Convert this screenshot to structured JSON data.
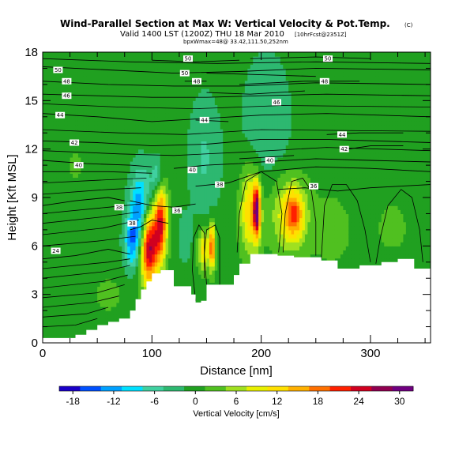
{
  "title": "Wind-Parallel Section at Max W: Vertical Velocity & Pot.Temp.",
  "title_mark": "(C)",
  "subtitle": "Valid 1400 LST (1200Z) THU 18 Mar 2010",
  "subtitle_note": "[10hrFcst@2351Z]",
  "subtitle_line2": "bpxWmax=48@ 33.42,111.50,252nm",
  "chart_data": {
    "type": "heatmap",
    "xlabel": "Distance [nm]",
    "ylabel": "Height [Kft MSL]",
    "xlim": [
      0,
      355
    ],
    "ylim": [
      0,
      18
    ],
    "x_ticks": [
      0,
      100,
      200,
      300
    ],
    "y_ticks": [
      0,
      3,
      6,
      9,
      12,
      15,
      18
    ],
    "colorbar": {
      "title": "Vertical Velocity [cm/s]",
      "ticks": [
        -18,
        -12,
        -6,
        0,
        6,
        12,
        18,
        24,
        30
      ],
      "range": [
        -20,
        32
      ],
      "colors": [
        "#1a00c8",
        "#0050ff",
        "#00a0ff",
        "#00e0ff",
        "#40d0a0",
        "#2db870",
        "#20a020",
        "#50c020",
        "#a0e020",
        "#e8f000",
        "#ffe000",
        "#ffb000",
        "#ff7000",
        "#ff2000",
        "#d00020",
        "#900050",
        "#700080"
      ]
    },
    "terrain_profile": [
      [
        0,
        0.3
      ],
      [
        20,
        0.3
      ],
      [
        30,
        0.5
      ],
      [
        40,
        0.8
      ],
      [
        50,
        1.1
      ],
      [
        60,
        1.3
      ],
      [
        70,
        1.5
      ],
      [
        80,
        2.0
      ],
      [
        85,
        2.7
      ],
      [
        90,
        3.3
      ],
      [
        95,
        3.8
      ],
      [
        100,
        4.3
      ],
      [
        108,
        4.5
      ],
      [
        115,
        4.5
      ],
      [
        120,
        3.5
      ],
      [
        128,
        3.5
      ],
      [
        136,
        3.0
      ],
      [
        140,
        2.5
      ],
      [
        145,
        2.6
      ],
      [
        150,
        3.6
      ],
      [
        170,
        3.6
      ],
      [
        175,
        4.2
      ],
      [
        180,
        4.9
      ],
      [
        190,
        5.5
      ],
      [
        205,
        5.5
      ],
      [
        215,
        5.4
      ],
      [
        230,
        5.3
      ],
      [
        255,
        5.1
      ],
      [
        270,
        4.6
      ],
      [
        290,
        4.8
      ],
      [
        310,
        5.0
      ],
      [
        325,
        5.2
      ],
      [
        340,
        4.6
      ],
      [
        355,
        4.6
      ]
    ],
    "velocity_cells": [
      {
        "x": 97,
        "z": 6.0,
        "w": 30,
        "rx": 8,
        "rz": 2.3
      },
      {
        "x": 108,
        "z": 7.5,
        "w": 22,
        "rx": 6,
        "rz": 2.4
      },
      {
        "x": 90,
        "z": 8.0,
        "w": -16,
        "rx": 10,
        "rz": 2.6
      },
      {
        "x": 81,
        "z": 6.2,
        "w": -10,
        "rx": 7,
        "rz": 1.6
      },
      {
        "x": 105,
        "z": 10.2,
        "w": -8,
        "rx": 6,
        "rz": 1.4
      },
      {
        "x": 130,
        "z": 6.4,
        "w": -4,
        "rx": 6,
        "rz": 1.6
      },
      {
        "x": 147,
        "z": 5.8,
        "w": 12,
        "rx": 5,
        "rz": 1.3
      },
      {
        "x": 155,
        "z": 6.0,
        "w": 20,
        "rx": 3,
        "rz": 1.4
      },
      {
        "x": 190,
        "z": 8.2,
        "w": 14,
        "rx": 9,
        "rz": 2.6
      },
      {
        "x": 196,
        "z": 8.2,
        "w": 26,
        "rx": 3,
        "rz": 1.6
      },
      {
        "x": 225,
        "z": 8.0,
        "w": 10,
        "rx": 18,
        "rz": 2.4
      },
      {
        "x": 230,
        "z": 8.0,
        "w": 13,
        "rx": 8,
        "rz": 1.4
      },
      {
        "x": 148,
        "z": 11.5,
        "w": -5,
        "rx": 15,
        "rz": 4.0
      },
      {
        "x": 205,
        "z": 13.5,
        "w": -4,
        "rx": 25,
        "rz": 5.0
      },
      {
        "x": 265,
        "z": 7.0,
        "w": 3,
        "rx": 18,
        "rz": 2.2
      },
      {
        "x": 320,
        "z": 7.2,
        "w": 2,
        "rx": 20,
        "rz": 2.2
      },
      {
        "x": 30,
        "z": 11.0,
        "w": 1.5,
        "rx": 20,
        "rz": 3.0
      },
      {
        "x": 60,
        "z": 3.0,
        "w": 2,
        "rx": 18,
        "rz": 1.5
      }
    ],
    "theta_contours": [
      {
        "label": "24",
        "points": [
          [
            0,
            5.2
          ],
          [
            30,
            5.4
          ],
          [
            60,
            5.8
          ],
          [
            80,
            5.5
          ]
        ],
        "label_at": [
          12,
          5.7
        ]
      },
      {
        "label": "36",
        "points": [
          [
            80,
            8.8
          ],
          [
            100,
            8.5
          ],
          [
            120,
            8.4
          ],
          [
            140,
            8.6
          ]
        ],
        "label_at": [
          123,
          8.2
        ]
      },
      {
        "label": "36",
        "points": [
          [
            215,
            9.5
          ],
          [
            240,
            9.6
          ],
          [
            270,
            9.4
          ],
          [
            300,
            9.6
          ],
          [
            355,
            9.8
          ]
        ],
        "label_at": [
          248,
          9.7
        ]
      },
      {
        "label": "38",
        "points": [
          [
            0,
            8.5
          ],
          [
            30,
            8.8
          ],
          [
            60,
            9.0
          ],
          [
            75,
            8.8
          ]
        ],
        "label_at": [
          70,
          8.4
        ]
      },
      {
        "label": "38",
        "points": [
          [
            140,
            9.7
          ],
          [
            170,
            9.9
          ],
          [
            200,
            10.6
          ],
          [
            250,
            10.9
          ],
          [
            300,
            10.8
          ],
          [
            355,
            10.6
          ]
        ],
        "label_at": [
          162,
          9.8
        ]
      },
      {
        "label": "38",
        "points": [
          [
            80,
            7.0
          ],
          [
            90,
            7.2
          ],
          [
            100,
            7.6
          ],
          [
            115,
            7.4
          ]
        ],
        "label_at": [
          82,
          7.4
        ]
      },
      {
        "label": "40",
        "points": [
          [
            0,
            11.3
          ],
          [
            40,
            11.1
          ],
          [
            80,
            11.0
          ],
          [
            100,
            10.9
          ]
        ],
        "label_at": [
          33,
          11.0
        ]
      },
      {
        "label": "40",
        "points": [
          [
            120,
            10.8
          ],
          [
            150,
            11.0
          ],
          [
            180,
            11.1
          ],
          [
            200,
            11.2
          ],
          [
            250,
            11.4
          ],
          [
            300,
            11.3
          ],
          [
            355,
            11.2
          ]
        ],
        "label_at": [
          137,
          10.7
        ]
      },
      {
        "label": "40",
        "points": [
          [
            180,
            11.4
          ],
          [
            205,
            11.5
          ],
          [
            230,
            11.6
          ]
        ],
        "label_at": [
          208,
          11.3
        ]
      },
      {
        "label": "42",
        "points": [
          [
            0,
            12.5
          ],
          [
            50,
            12.4
          ],
          [
            100,
            12.2
          ],
          [
            150,
            12.3
          ],
          [
            200,
            12.6
          ],
          [
            260,
            12.6
          ],
          [
            355,
            12.4
          ]
        ],
        "label_at": [
          29,
          12.4
        ]
      },
      {
        "label": "42",
        "points": [
          [
            280,
            12.0
          ],
          [
            300,
            12.2
          ],
          [
            330,
            12.2
          ]
        ],
        "label_at": [
          276,
          12.0
        ]
      },
      {
        "label": "44",
        "points": [
          [
            0,
            14.2
          ],
          [
            50,
            14.0
          ],
          [
            100,
            13.7
          ],
          [
            150,
            13.9
          ],
          [
            200,
            14.1
          ],
          [
            260,
            14.2
          ],
          [
            355,
            14.0
          ]
        ],
        "label_at": [
          16,
          14.1
        ]
      },
      {
        "label": "44",
        "points": [
          [
            140,
            13.8
          ],
          [
            170,
            13.7
          ]
        ],
        "label_at": [
          148,
          13.8
        ]
      },
      {
        "label": "44",
        "points": [
          [
            260,
            12.9
          ],
          [
            290,
            13.0
          ],
          [
            330,
            13.0
          ]
        ],
        "label_at": [
          274,
          12.9
        ]
      },
      {
        "label": "46",
        "points": [
          [
            0,
            15.4
          ],
          [
            50,
            15.3
          ],
          [
            100,
            15.2
          ],
          [
            150,
            15.2
          ],
          [
            200,
            15.3
          ],
          [
            260,
            15.4
          ],
          [
            355,
            15.3
          ]
        ],
        "label_at": [
          22,
          15.3
        ]
      },
      {
        "label": "46",
        "points": [
          [
            150,
            15.5
          ],
          [
            190,
            15.4
          ],
          [
            240,
            15.6
          ]
        ],
        "label_at": [
          214,
          14.9
        ]
      },
      {
        "label": "48",
        "points": [
          [
            0,
            16.2
          ],
          [
            60,
            16.0
          ],
          [
            120,
            15.9
          ],
          [
            180,
            15.9
          ],
          [
            250,
            16.1
          ],
          [
            355,
            16.0
          ]
        ],
        "label_at": [
          22,
          16.2
        ]
      },
      {
        "label": "48",
        "points": [
          [
            180,
            16.0
          ],
          [
            240,
            16.2
          ],
          [
            290,
            16.2
          ]
        ],
        "label_at": [
          258,
          16.2
        ]
      },
      {
        "label": "48",
        "points": [
          [
            130,
            16.2
          ],
          [
            150,
            16.2
          ]
        ],
        "label_at": [
          141,
          16.2
        ]
      },
      {
        "label": "50",
        "points": [
          [
            0,
            17.1
          ],
          [
            60,
            16.9
          ],
          [
            120,
            16.7
          ],
          [
            180,
            16.8
          ],
          [
            250,
            17.0
          ],
          [
            355,
            16.9
          ]
        ],
        "label_at": [
          14,
          16.9
        ]
      },
      {
        "label": "50",
        "points": [
          [
            150,
            16.7
          ],
          [
            200,
            16.6
          ],
          [
            250,
            16.5
          ]
        ],
        "label_at": [
          130,
          16.7
        ]
      },
      {
        "label": "50",
        "points": [
          [
            190,
            17.6
          ],
          [
            250,
            17.7
          ],
          [
            300,
            17.6
          ]
        ],
        "label_at": [
          261,
          17.6
        ]
      },
      {
        "label": "50",
        "points": [
          [
            100,
            17.5
          ],
          [
            140,
            17.4
          ],
          [
            180,
            17.5
          ]
        ],
        "label_at": [
          133,
          17.6
        ]
      }
    ],
    "filler_contours": [
      [
        [
          0,
          1.0
        ],
        [
          30,
          1.1
        ],
        [
          50,
          1.5
        ]
      ],
      [
        [
          0,
          1.6
        ],
        [
          40,
          1.8
        ],
        [
          60,
          2.2
        ]
      ],
      [
        [
          0,
          2.2
        ],
        [
          45,
          2.5
        ],
        [
          70,
          2.9
        ]
      ],
      [
        [
          0,
          2.8
        ],
        [
          50,
          3.1
        ],
        [
          75,
          3.6
        ]
      ],
      [
        [
          0,
          3.4
        ],
        [
          55,
          3.8
        ],
        [
          78,
          4.2
        ]
      ],
      [
        [
          0,
          4.0
        ],
        [
          55,
          4.4
        ],
        [
          80,
          4.8
        ]
      ],
      [
        [
          0,
          4.6
        ],
        [
          60,
          5.0
        ],
        [
          80,
          5.2
        ]
      ],
      [
        [
          0,
          6.0
        ],
        [
          50,
          6.3
        ],
        [
          85,
          6.6
        ]
      ],
      [
        [
          0,
          6.7
        ],
        [
          55,
          7.1
        ],
        [
          88,
          7.6
        ]
      ],
      [
        [
          0,
          7.4
        ],
        [
          55,
          7.8
        ],
        [
          88,
          8.1
        ]
      ],
      [
        [
          0,
          8.0
        ],
        [
          60,
          8.4
        ],
        [
          90,
          8.6
        ]
      ],
      [
        [
          0,
          9.2
        ],
        [
          60,
          9.5
        ],
        [
          90,
          9.6
        ]
      ],
      [
        [
          0,
          9.9
        ],
        [
          60,
          10.1
        ],
        [
          95,
          10.2
        ]
      ],
      [
        [
          0,
          10.6
        ],
        [
          60,
          10.6
        ],
        [
          100,
          10.5
        ]
      ],
      [
        [
          0,
          11.9
        ],
        [
          70,
          11.7
        ],
        [
          120,
          11.6
        ],
        [
          180,
          11.8
        ],
        [
          260,
          12.1
        ],
        [
          355,
          11.9
        ]
      ],
      [
        [
          0,
          13.2
        ],
        [
          70,
          13.0
        ],
        [
          130,
          12.9
        ],
        [
          200,
          13.2
        ],
        [
          355,
          13.1
        ]
      ],
      [
        [
          0,
          14.8
        ],
        [
          70,
          14.6
        ],
        [
          140,
          14.5
        ],
        [
          220,
          14.7
        ],
        [
          355,
          14.6
        ]
      ],
      [
        [
          0,
          17.6
        ],
        [
          80,
          17.4
        ],
        [
          160,
          17.3
        ],
        [
          250,
          17.4
        ],
        [
          355,
          17.3
        ]
      ]
    ],
    "w_contours": [
      [
        [
          178,
          5.6
        ],
        [
          180,
          8.0
        ],
        [
          186,
          10.0
        ],
        [
          200,
          10.6
        ],
        [
          214,
          10.0
        ],
        [
          219,
          8.0
        ],
        [
          216,
          5.6
        ]
      ],
      [
        [
          220,
          5.6
        ],
        [
          222,
          8.0
        ],
        [
          228,
          10.0
        ],
        [
          238,
          10.2
        ],
        [
          246,
          9.4
        ],
        [
          250,
          7.5
        ],
        [
          250,
          5.4
        ]
      ],
      [
        [
          255,
          5.2
        ],
        [
          258,
          8.5
        ],
        [
          265,
          9.8
        ],
        [
          278,
          9.8
        ],
        [
          288,
          8.8
        ],
        [
          295,
          7.0
        ],
        [
          300,
          5.0
        ]
      ],
      [
        [
          305,
          4.9
        ],
        [
          309,
          6.5
        ],
        [
          316,
          8.5
        ],
        [
          328,
          9.5
        ],
        [
          338,
          9.0
        ],
        [
          345,
          7.0
        ],
        [
          348,
          5.0
        ]
      ],
      [
        [
          150,
          3.6
        ],
        [
          148,
          5.5
        ],
        [
          150,
          7.0
        ],
        [
          158,
          7.3
        ],
        [
          162,
          6.5
        ],
        [
          162,
          3.6
        ]
      ],
      [
        [
          140,
          2.6
        ],
        [
          137,
          4.5
        ],
        [
          138,
          6.5
        ],
        [
          143,
          7.3
        ],
        [
          148,
          6.8
        ],
        [
          148,
          4.0
        ]
      ]
    ]
  }
}
